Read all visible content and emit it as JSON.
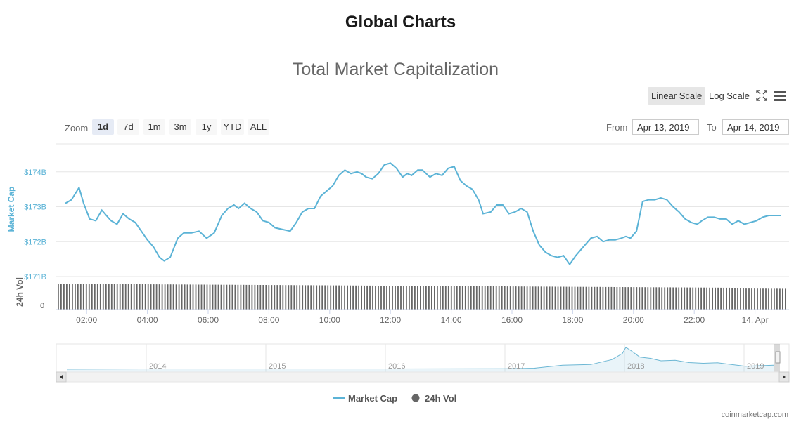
{
  "header": {
    "title": "Global Charts",
    "chart_title": "Total Market Capitalization"
  },
  "toolbar": {
    "linear_label": "Linear Scale",
    "log_label": "Log Scale",
    "zoom_label": "Zoom",
    "zoom_options": [
      "1d",
      "7d",
      "1m",
      "3m",
      "1y",
      "YTD",
      "ALL"
    ],
    "zoom_active": "1d",
    "from_label": "From",
    "from_value": "Apr 13, 2019",
    "to_label": "To",
    "to_value": "Apr 14, 2019"
  },
  "legend": {
    "market_cap": "Market Cap",
    "volume": "24h Vol"
  },
  "credit": "coinmarketcap.com",
  "colors": {
    "market_cap": "#5bb3d6",
    "volume": "#666666",
    "navigator": "#6cb7d4"
  },
  "chart_data": {
    "type": "line",
    "x_ticks": [
      "02:00",
      "04:00",
      "06:00",
      "08:00",
      "10:00",
      "12:00",
      "14:00",
      "16:00",
      "18:00",
      "20:00",
      "22:00",
      "14. Apr"
    ],
    "y_ticks": [
      "$174B",
      "$173B",
      "$172B",
      "$171B"
    ],
    "ylabel": "Market Cap",
    "ylim": [
      171,
      174.8
    ],
    "volume_label": "24h Vol",
    "volume_ticks": [
      "0"
    ],
    "series": [
      {
        "name": "Market Cap",
        "x_hours": [
          1.3,
          1.5,
          1.75,
          1.9,
          2.1,
          2.3,
          2.5,
          2.65,
          2.8,
          3.0,
          3.2,
          3.4,
          3.6,
          3.8,
          4.0,
          4.2,
          4.4,
          4.55,
          4.75,
          5.0,
          5.2,
          5.45,
          5.7,
          5.95,
          6.2,
          6.45,
          6.65,
          6.85,
          7.0,
          7.2,
          7.4,
          7.6,
          7.8,
          8.0,
          8.2,
          8.45,
          8.7,
          8.9,
          9.1,
          9.3,
          9.5,
          9.7,
          9.9,
          10.1,
          10.3,
          10.5,
          10.7,
          10.9,
          11.05,
          11.2,
          11.4,
          11.6,
          11.8,
          12.0,
          12.2,
          12.4,
          12.55,
          12.7,
          12.9,
          13.05,
          13.3,
          13.5,
          13.7,
          13.9,
          14.1,
          14.3,
          14.5,
          14.7,
          14.9,
          15.05,
          15.3,
          15.5,
          15.7,
          15.9,
          16.1,
          16.3,
          16.5,
          16.7,
          16.9,
          17.1,
          17.3,
          17.5,
          17.7,
          17.9,
          18.1,
          18.25,
          18.4,
          18.6,
          18.8,
          19.0,
          19.2,
          19.4,
          19.6,
          19.75,
          19.9,
          20.1,
          20.3,
          20.5,
          20.7,
          20.9,
          21.1,
          21.3,
          21.5,
          21.7,
          21.9,
          22.1,
          22.25,
          22.45,
          22.65,
          22.85,
          23.05,
          23.25,
          23.45,
          23.65,
          23.85,
          24.05,
          24.25,
          24.45,
          24.65,
          24.85
        ],
        "values": [
          173.1,
          173.2,
          173.55,
          173.1,
          172.65,
          172.6,
          172.9,
          172.75,
          172.6,
          172.5,
          172.8,
          172.65,
          172.55,
          172.3,
          172.05,
          171.85,
          171.55,
          171.45,
          171.55,
          172.1,
          172.25,
          172.25,
          172.3,
          172.1,
          172.25,
          172.75,
          172.95,
          173.05,
          172.95,
          173.1,
          172.95,
          172.85,
          172.6,
          172.55,
          172.4,
          172.35,
          172.3,
          172.55,
          172.85,
          172.95,
          172.95,
          173.3,
          173.45,
          173.6,
          173.9,
          174.05,
          173.95,
          174.0,
          173.95,
          173.85,
          173.8,
          173.95,
          174.2,
          174.25,
          174.1,
          173.85,
          173.95,
          173.9,
          174.05,
          174.05,
          173.85,
          173.95,
          173.9,
          174.1,
          174.15,
          173.75,
          173.6,
          173.5,
          173.2,
          172.8,
          172.85,
          173.05,
          173.05,
          172.8,
          172.85,
          172.95,
          172.85,
          172.3,
          171.9,
          171.7,
          171.6,
          171.55,
          171.6,
          171.35,
          171.6,
          171.75,
          171.9,
          172.1,
          172.15,
          172.0,
          172.05,
          172.05,
          172.1,
          172.15,
          172.1,
          172.3,
          173.15,
          173.2,
          173.2,
          173.25,
          173.2,
          173.0,
          172.85,
          172.65,
          172.55,
          172.5,
          172.6,
          172.7,
          172.7,
          172.65,
          172.65,
          172.5,
          172.6,
          172.5,
          172.55,
          172.6,
          172.7,
          172.75,
          172.75,
          172.75
        ]
      },
      {
        "name": "24h Vol",
        "type": "bar",
        "note_unit": "relative",
        "start_level": 0.72,
        "end_level": 0.6
      }
    ],
    "navigator": {
      "x_ticks": [
        "2014",
        "2015",
        "2016",
        "2017",
        "2018",
        "2019"
      ]
    }
  }
}
